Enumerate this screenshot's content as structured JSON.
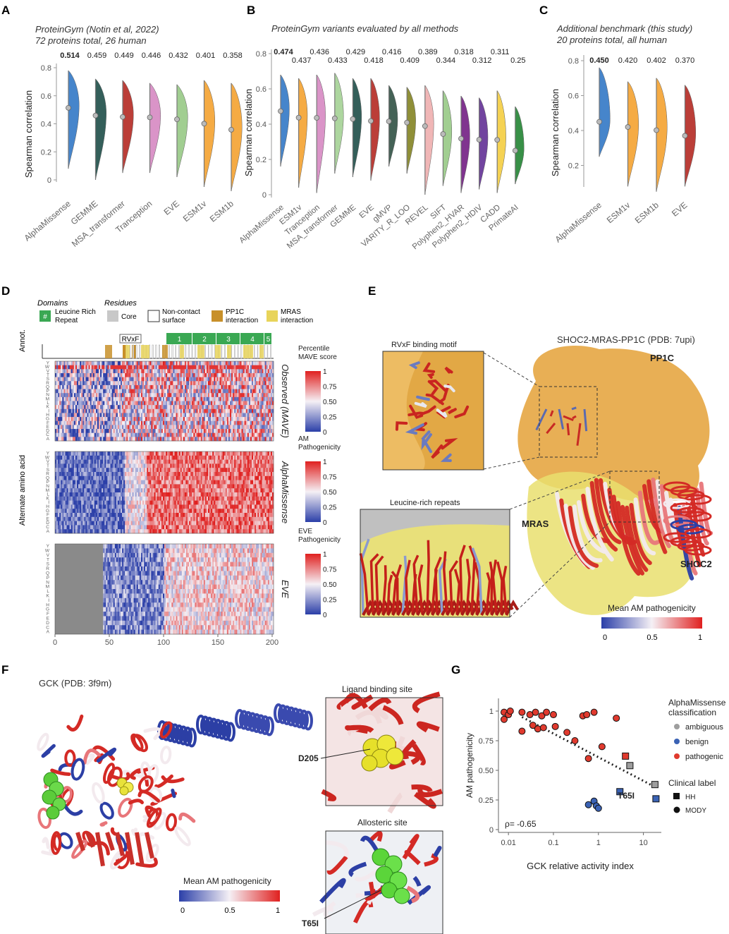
{
  "panels": {
    "A": {
      "letter": "A",
      "title1": "ProteinGym (Notin et al, 2022)",
      "title2": "72 proteins total, 26 human",
      "ylabel": "Spearman correlation",
      "ticks": [
        "0.8",
        "0.6",
        "0.4",
        "0.2",
        "0"
      ],
      "methods": [
        "AlphaMissense",
        "GEMME",
        "MSA_transformer",
        "Tranception",
        "EVE",
        "ESM1v",
        "ESM1b"
      ],
      "values": [
        "0.514",
        "0.459",
        "0.449",
        "0.446",
        "0.432",
        "0.401",
        "0.358"
      ],
      "colors": [
        "#3d7fc9",
        "#2a5752",
        "#b8342e",
        "#d98fc6",
        "#9ccc8c",
        "#f5a73b",
        "#f5a73b"
      ]
    },
    "B": {
      "letter": "B",
      "title1": "ProteinGym variants evaluated by all methods",
      "ylabel": "Spearman correlation",
      "ticks": [
        "0.8",
        "0.6",
        "0.4",
        "0.2",
        "0"
      ],
      "methods": [
        "AlphaMissense",
        "ESM1v",
        "Tranception",
        "MSA_transformer",
        "GEMME",
        "EVE",
        "gMVP",
        "VARITY_R_LOO",
        "REVEL",
        "SIFT",
        "Polyphen2_HVAR",
        "Polyphen2_HDIV",
        "CADD",
        "PrimateAI"
      ],
      "values": [
        "0.474",
        "0.437",
        "0.436",
        "0.433",
        "0.429",
        "0.418",
        "0.416",
        "0.409",
        "0.389",
        "0.344",
        "0.318",
        "0.312",
        "0.311",
        "0.25"
      ],
      "colors": [
        "#3d7fc9",
        "#f5a73b",
        "#d98fc6",
        "#a9d49a",
        "#2a5752",
        "#b8342e",
        "#3a5a4e",
        "#8a8a2e",
        "#f0b3b3",
        "#9ccc8c",
        "#7a2a8a",
        "#6a3a9a",
        "#f5d04a",
        "#2e8b3e"
      ]
    },
    "C": {
      "letter": "C",
      "title1": "Additional benchmark (this study)",
      "title2": "20 proteins total, all human",
      "ylabel": "Spearman correlation",
      "ticks": [
        "0.8",
        "0.6",
        "0.4",
        "0.2"
      ],
      "methods": [
        "AlphaMissense",
        "ESM1v",
        "ESM1b",
        "EVE"
      ],
      "values": [
        "0.450",
        "0.420",
        "0.402",
        "0.370"
      ],
      "colors": [
        "#3d7fc9",
        "#f5a73b",
        "#f5a73b",
        "#b8342e"
      ]
    },
    "D": {
      "letter": "D",
      "domains_title": "Domains",
      "residues_title": "Residues",
      "lrr_label": "Leucine Rich Repeat",
      "core_label": "Core",
      "noncontact_label": "Non-contact surface",
      "pp1c_label": "PP1C interaction",
      "mras_label": "MRAS interaction",
      "annot_label": "Annot.",
      "rvxf_label": "RVxF",
      "lrr_numbers": [
        "1",
        "2",
        "3",
        "4",
        "5"
      ],
      "ylabel": "Alternate amino acid",
      "aa_letters": [
        "Y",
        "W",
        "V",
        "T",
        "S",
        "R",
        "Q",
        "P",
        "N",
        "M",
        "L",
        "K",
        "I",
        "H",
        "G",
        "F",
        "E",
        "D",
        "C",
        "A"
      ],
      "heatmaps": [
        {
          "name": "Observed (MAVE)",
          "legend1": "Percentile",
          "legend2": "MAVE score"
        },
        {
          "name": "AlphaMissense",
          "legend1": "AM",
          "legend2": "Pathogenicity"
        },
        {
          "name": "EVE",
          "legend1": "EVE",
          "legend2": "Pathogenicity"
        }
      ],
      "cbar_ticks": [
        "1",
        "0.75",
        "0.50",
        "0.25",
        "0"
      ],
      "xticks": [
        "0",
        "50",
        "100",
        "150",
        "200"
      ]
    },
    "E": {
      "letter": "E",
      "title": "SHOC2-MRAS-PP1C (PDB: 7upi)",
      "rvxf_inset": "RVxF binding motif",
      "lrr_inset": "Leucine-rich repeats",
      "pp1c": "PP1C",
      "mras": "MRAS",
      "shoc2": "SHOC2",
      "cbar_title": "Mean AM pathogenicity",
      "cbar_ticks": [
        "0",
        "0.5",
        "1"
      ]
    },
    "F": {
      "letter": "F",
      "title": "GCK (PDB: 3f9m)",
      "ligand_title": "Ligand binding site",
      "allosteric_title": "Allosteric site",
      "d205": "D205",
      "t65i": "T65I",
      "cbar_title": "Mean AM pathogenicity",
      "cbar_ticks": [
        "0",
        "0.5",
        "1"
      ]
    },
    "G": {
      "letter": "G",
      "ylabel": "AM pathogenicity",
      "xlabel": "GCK relative activity index",
      "yticks": [
        "1",
        "0.75",
        "0.50",
        "0.25",
        "0"
      ],
      "xticks": [
        "0.01",
        "0.1",
        "1",
        "10"
      ],
      "rho": "ρ= -0.65",
      "t65i": "T65I",
      "legend_title1": "AlphaMissense",
      "legend_title2": "classification",
      "legend_items": [
        "ambiguous",
        "benign",
        "pathogenic"
      ],
      "clin_title": "Clinical label",
      "clin_items": [
        "HH",
        "MODY"
      ]
    }
  },
  "chart_data": [
    {
      "type": "violin",
      "title": "ProteinGym (Notin et al, 2022)",
      "ylabel": "Spearman correlation",
      "ylim": [
        0,
        0.8
      ],
      "categories": [
        "AlphaMissense",
        "GEMME",
        "MSA_transformer",
        "Tranception",
        "EVE",
        "ESM1v",
        "ESM1b"
      ],
      "values": [
        0.514,
        0.459,
        0.449,
        0.446,
        0.432,
        0.401,
        0.358
      ],
      "ranges": [
        [
          0.08,
          0.78
        ],
        [
          0.0,
          0.72
        ],
        [
          0.05,
          0.71
        ],
        [
          0.05,
          0.69
        ],
        [
          0.02,
          0.68
        ],
        [
          -0.05,
          0.71
        ],
        [
          -0.08,
          0.69
        ]
      ]
    },
    {
      "type": "violin",
      "title": "ProteinGym variants evaluated by all methods",
      "ylabel": "Spearman correlation",
      "ylim": [
        0,
        0.8
      ],
      "categories": [
        "AlphaMissense",
        "ESM1v",
        "Tranception",
        "MSA_transformer",
        "GEMME",
        "EVE",
        "gMVP",
        "VARITY_R_LOO",
        "REVEL",
        "SIFT",
        "Polyphen2_HVAR",
        "Polyphen2_HDIV",
        "CADD",
        "PrimateAI"
      ],
      "values": [
        0.474,
        0.437,
        0.436,
        0.433,
        0.429,
        0.418,
        0.416,
        0.409,
        0.389,
        0.344,
        0.318,
        0.312,
        0.311,
        0.25
      ],
      "ranges": [
        [
          0.16,
          0.68
        ],
        [
          0.04,
          0.66
        ],
        [
          0.01,
          0.68
        ],
        [
          0.12,
          0.69
        ],
        [
          0.1,
          0.66
        ],
        [
          0.08,
          0.66
        ],
        [
          0.16,
          0.62
        ],
        [
          0.12,
          0.61
        ],
        [
          0.0,
          0.62
        ],
        [
          0.05,
          0.59
        ],
        [
          0.01,
          0.56
        ],
        [
          0.03,
          0.55
        ],
        [
          0.01,
          0.59
        ],
        [
          0.06,
          0.5
        ]
      ]
    },
    {
      "type": "violin",
      "title": "Additional benchmark (this study)",
      "ylabel": "Spearman correlation",
      "ylim": [
        0,
        0.8
      ],
      "categories": [
        "AlphaMissense",
        "ESM1v",
        "ESM1b",
        "EVE"
      ],
      "values": [
        0.45,
        0.42,
        0.402,
        0.37
      ],
      "ranges": [
        [
          0.25,
          0.76
        ],
        [
          0.08,
          0.68
        ],
        [
          0.05,
          0.7
        ],
        [
          0.08,
          0.66
        ]
      ]
    },
    {
      "type": "scatter",
      "ylabel": "AM pathogenicity",
      "xlabel": "GCK relative activity index",
      "xscale": "log",
      "xlim": [
        0.006,
        25
      ],
      "ylim": [
        0,
        1
      ],
      "annotation": "ρ= -0.65",
      "points": [
        {
          "x": 0.008,
          "y": 0.99,
          "c": "pathogenic",
          "s": "MODY"
        },
        {
          "x": 0.008,
          "y": 0.93,
          "c": "pathogenic",
          "s": "MODY"
        },
        {
          "x": 0.01,
          "y": 0.97,
          "c": "pathogenic",
          "s": "MODY"
        },
        {
          "x": 0.011,
          "y": 1.0,
          "c": "pathogenic",
          "s": "MODY"
        },
        {
          "x": 0.02,
          "y": 0.99,
          "c": "pathogenic",
          "s": "MODY"
        },
        {
          "x": 0.02,
          "y": 0.83,
          "c": "pathogenic",
          "s": "MODY"
        },
        {
          "x": 0.03,
          "y": 0.97,
          "c": "pathogenic",
          "s": "MODY"
        },
        {
          "x": 0.035,
          "y": 0.88,
          "c": "pathogenic",
          "s": "MODY"
        },
        {
          "x": 0.04,
          "y": 0.99,
          "c": "pathogenic",
          "s": "MODY"
        },
        {
          "x": 0.045,
          "y": 0.85,
          "c": "pathogenic",
          "s": "MODY"
        },
        {
          "x": 0.055,
          "y": 0.96,
          "c": "pathogenic",
          "s": "MODY"
        },
        {
          "x": 0.06,
          "y": 0.86,
          "c": "pathogenic",
          "s": "MODY"
        },
        {
          "x": 0.07,
          "y": 0.99,
          "c": "pathogenic",
          "s": "MODY"
        },
        {
          "x": 0.1,
          "y": 0.97,
          "c": "pathogenic",
          "s": "MODY"
        },
        {
          "x": 0.11,
          "y": 0.87,
          "c": "pathogenic",
          "s": "MODY"
        },
        {
          "x": 0.2,
          "y": 0.82,
          "c": "pathogenic",
          "s": "MODY"
        },
        {
          "x": 0.3,
          "y": 0.75,
          "c": "pathogenic",
          "s": "MODY"
        },
        {
          "x": 0.45,
          "y": 0.96,
          "c": "pathogenic",
          "s": "MODY"
        },
        {
          "x": 0.55,
          "y": 0.97,
          "c": "pathogenic",
          "s": "MODY"
        },
        {
          "x": 0.6,
          "y": 0.6,
          "c": "pathogenic",
          "s": "MODY"
        },
        {
          "x": 0.8,
          "y": 0.99,
          "c": "pathogenic",
          "s": "MODY"
        },
        {
          "x": 1.2,
          "y": 0.7,
          "c": "pathogenic",
          "s": "MODY"
        },
        {
          "x": 2.5,
          "y": 0.94,
          "c": "pathogenic",
          "s": "MODY"
        },
        {
          "x": 0.6,
          "y": 0.21,
          "c": "benign",
          "s": "MODY"
        },
        {
          "x": 0.8,
          "y": 0.24,
          "c": "benign",
          "s": "MODY"
        },
        {
          "x": 0.9,
          "y": 0.2,
          "c": "benign",
          "s": "MODY"
        },
        {
          "x": 1.0,
          "y": 0.18,
          "c": "benign",
          "s": "MODY"
        },
        {
          "x": 4.0,
          "y": 0.62,
          "c": "pathogenic",
          "s": "HH"
        },
        {
          "x": 5.0,
          "y": 0.54,
          "c": "ambiguous",
          "s": "HH"
        },
        {
          "x": 3.0,
          "y": 0.32,
          "c": "benign",
          "s": "HH"
        },
        {
          "x": 18,
          "y": 0.38,
          "c": "ambiguous",
          "s": "HH"
        },
        {
          "x": 19,
          "y": 0.26,
          "c": "benign",
          "s": "HH"
        }
      ]
    }
  ],
  "colors": {
    "pathogenic": "#e03a2e",
    "benign": "#3a62b4",
    "ambiguous": "#9e9e9e",
    "lrr": "#3aa853",
    "pp1c": "#c8902a",
    "mras": "#e8d45a"
  }
}
